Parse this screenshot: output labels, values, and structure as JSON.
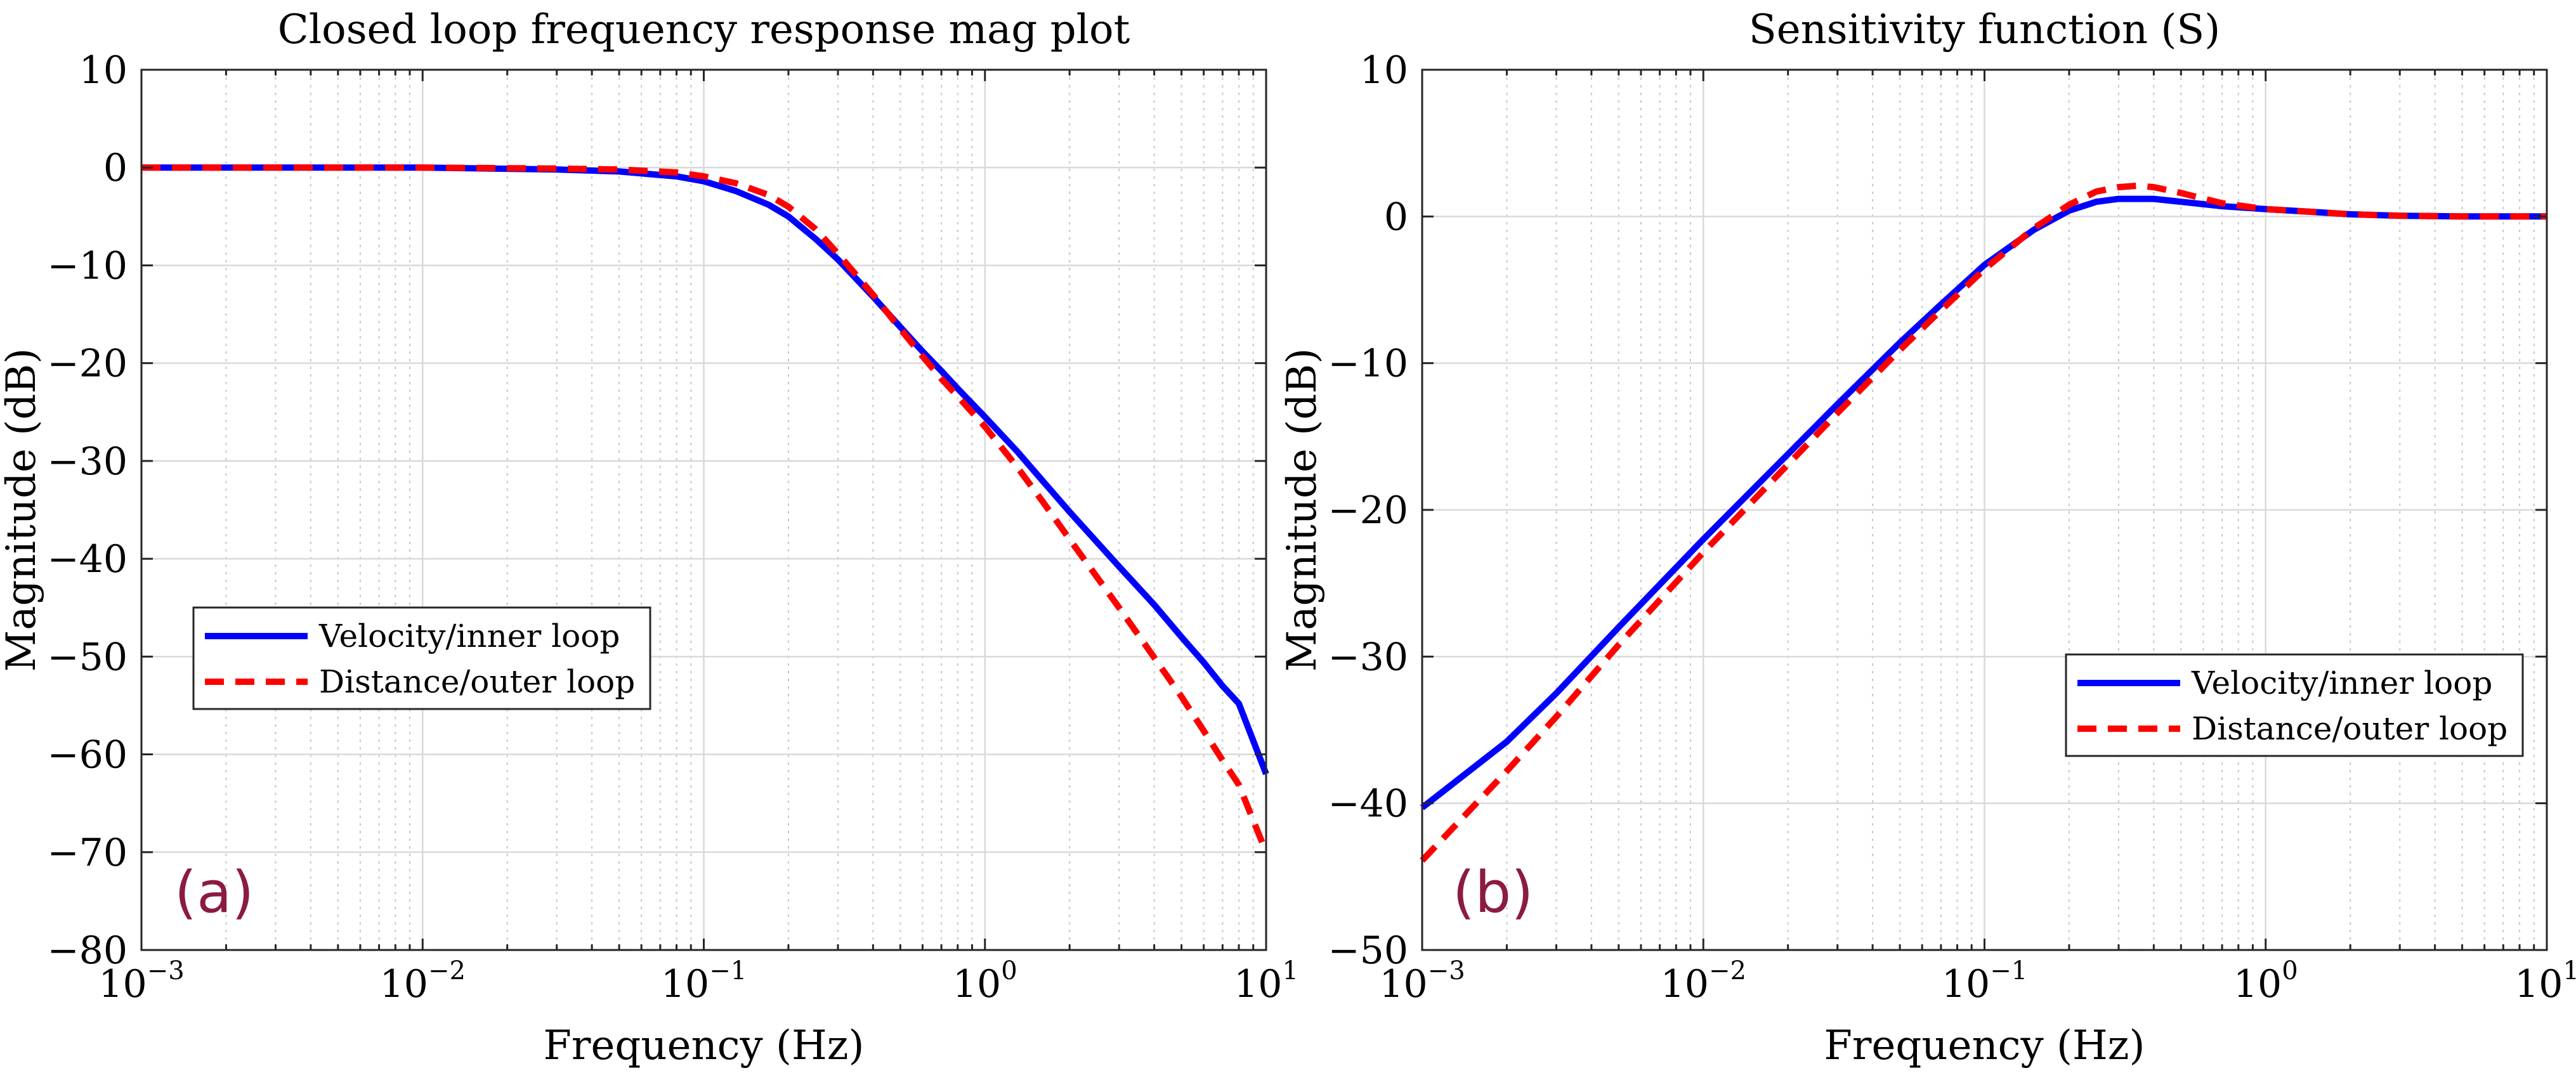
{
  "chart_data": [
    {
      "type": "line",
      "title": "Closed loop frequency response mag plot",
      "xlabel": "Frequency (Hz)",
      "ylabel": "Magnitude (dB)",
      "xscale": "log",
      "xlim": [
        0.001,
        10
      ],
      "ylim": [
        -80,
        10
      ],
      "yticks": [
        10,
        0,
        -10,
        -20,
        -30,
        -40,
        -50,
        -60,
        -70,
        -80
      ],
      "xticks": [
        {
          "base": "10",
          "exp": "−3"
        },
        {
          "base": "10",
          "exp": "−2"
        },
        {
          "base": "10",
          "exp": "−1"
        },
        {
          "base": "10",
          "exp": "0"
        },
        {
          "base": "10",
          "exp": "1"
        }
      ],
      "grid": true,
      "legend_position": "center-left",
      "panel_tag": "(a)",
      "series": [
        {
          "name": "Velocity/inner loop",
          "color": "#0000ff",
          "style": "solid",
          "x": [
            0.001,
            0.003,
            0.01,
            0.03,
            0.05,
            0.08,
            0.1,
            0.13,
            0.17,
            0.2,
            0.25,
            0.3,
            0.4,
            0.5,
            0.6,
            0.7,
            0.8,
            1,
            1.3,
            1.6,
            2,
            3,
            4,
            5,
            6,
            7,
            8,
            10
          ],
          "y": [
            0,
            0,
            0,
            -0.2,
            -0.4,
            -0.9,
            -1.4,
            -2.4,
            -3.8,
            -5,
            -7.3,
            -9.4,
            -13.2,
            -16.3,
            -18.8,
            -20.8,
            -22.6,
            -25.5,
            -29,
            -32,
            -35.2,
            -40.8,
            -44.7,
            -48,
            -50.6,
            -53,
            -54.8,
            -62
          ]
        },
        {
          "name": "Distance/outer loop",
          "color": "#ff0000",
          "style": "dashed",
          "x": [
            0.001,
            0.003,
            0.01,
            0.03,
            0.05,
            0.08,
            0.1,
            0.13,
            0.17,
            0.2,
            0.25,
            0.3,
            0.4,
            0.5,
            0.6,
            0.7,
            0.8,
            1,
            1.3,
            1.6,
            2,
            3,
            4,
            5,
            6,
            7,
            8,
            10
          ],
          "y": [
            0,
            0,
            0,
            -0.1,
            -0.2,
            -0.5,
            -0.9,
            -1.6,
            -2.8,
            -4,
            -6.3,
            -8.8,
            -13,
            -16.5,
            -19.3,
            -21.6,
            -23.4,
            -26.5,
            -30.6,
            -34.1,
            -38,
            -45,
            -50.1,
            -54.1,
            -57.6,
            -60.6,
            -63.1,
            -70
          ]
        }
      ]
    },
    {
      "type": "line",
      "title": "Sensitivity function (S)",
      "xlabel": "Frequency (Hz)",
      "ylabel": "Magnitude (dB)",
      "xscale": "log",
      "xlim": [
        0.001,
        10
      ],
      "ylim": [
        -50,
        10
      ],
      "yticks": [
        10,
        0,
        -10,
        -20,
        -30,
        -40,
        -50
      ],
      "xticks": [
        {
          "base": "10",
          "exp": "−3"
        },
        {
          "base": "10",
          "exp": "−2"
        },
        {
          "base": "10",
          "exp": "−1"
        },
        {
          "base": "10",
          "exp": "0"
        },
        {
          "base": "10",
          "exp": "1"
        }
      ],
      "grid": true,
      "legend_position": "lower-right",
      "panel_tag": "(b)",
      "series": [
        {
          "name": "Velocity/inner loop",
          "color": "#0000ff",
          "style": "solid",
          "x": [
            0.001,
            0.002,
            0.003,
            0.005,
            0.01,
            0.02,
            0.03,
            0.05,
            0.07,
            0.1,
            0.15,
            0.2,
            0.25,
            0.3,
            0.4,
            0.5,
            0.7,
            1,
            1.5,
            2,
            3,
            5,
            10
          ],
          "y": [
            -40.3,
            -35.8,
            -32.5,
            -28,
            -22,
            -16.2,
            -12.8,
            -8.6,
            -6,
            -3.3,
            -0.9,
            0.4,
            1,
            1.2,
            1.2,
            1,
            0.7,
            0.5,
            0.3,
            0.15,
            0.05,
            0,
            0
          ]
        },
        {
          "name": "Distance/outer loop",
          "color": "#ff0000",
          "style": "dashed",
          "x": [
            0.001,
            0.002,
            0.003,
            0.005,
            0.01,
            0.02,
            0.03,
            0.05,
            0.07,
            0.1,
            0.15,
            0.2,
            0.25,
            0.3,
            0.35,
            0.4,
            0.5,
            0.7,
            1,
            1.5,
            2,
            3,
            5,
            10
          ],
          "y": [
            -43.9,
            -37.8,
            -34.1,
            -29.2,
            -22.9,
            -16.9,
            -13.4,
            -9.1,
            -6.4,
            -3.6,
            -0.8,
            0.8,
            1.7,
            2,
            2.1,
            2,
            1.6,
            0.9,
            0.5,
            0.3,
            0.15,
            0.05,
            0,
            0
          ]
        }
      ]
    }
  ]
}
